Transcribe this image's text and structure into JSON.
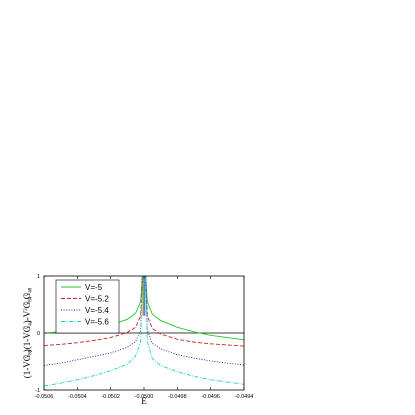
{
  "chart_data": {
    "type": "line",
    "title": "",
    "xlabel": "E",
    "ylabel": "(1-VG^0_88)(1-VG^0_44)-V^2G^0_84G^0_48",
    "xlim": [
      -0.0506,
      -0.0494
    ],
    "ylim": [
      -1.0,
      1.0
    ],
    "x_ticks": [
      "-0.0506",
      "-0.0504",
      "-0.0502",
      "-0.0500",
      "-0.0498",
      "-0.0496",
      "-0.0494"
    ],
    "y_ticks": [
      "1",
      "0",
      "-1"
    ],
    "x_tick_values": [
      -0.0506,
      -0.0504,
      -0.0502,
      -0.05,
      -0.0498,
      -0.0496,
      -0.0494
    ],
    "y_tick_values": [
      1,
      0,
      -1
    ],
    "grid": false,
    "legend_position": "top-left",
    "reference_line": {
      "y": 0,
      "color": "#000000"
    },
    "pole_x": -0.05,
    "series": [
      {
        "name": "V=-5",
        "color": "#22cc22",
        "dash": "solid",
        "x": [
          -0.0506,
          -0.0505,
          -0.0504,
          -0.0503,
          -0.0502,
          -0.0501,
          -0.05005,
          -0.05002,
          -0.05001,
          -0.04999,
          -0.04998,
          -0.04995,
          -0.0499,
          -0.0498,
          -0.0497,
          -0.0496,
          -0.0495,
          -0.0494
        ],
        "y": [
          0.0,
          0.02,
          0.05,
          0.09,
          0.14,
          0.24,
          0.35,
          0.55,
          1.0,
          1.0,
          0.55,
          0.33,
          0.22,
          0.1,
          0.02,
          -0.04,
          -0.08,
          -0.12
        ]
      },
      {
        "name": "V=-5.2",
        "color": "#cc2222",
        "dash": "dashed",
        "x": [
          -0.0506,
          -0.0505,
          -0.0504,
          -0.0503,
          -0.0502,
          -0.0501,
          -0.05005,
          -0.05002,
          -0.05001,
          -0.04999,
          -0.04998,
          -0.04995,
          -0.0499,
          -0.0498,
          -0.0497,
          -0.0496,
          -0.0495,
          -0.0494
        ],
        "y": [
          -0.22,
          -0.2,
          -0.17,
          -0.13,
          -0.08,
          0.01,
          0.1,
          0.3,
          1.0,
          1.0,
          0.3,
          0.08,
          -0.02,
          -0.11,
          -0.16,
          -0.19,
          -0.21,
          -0.23
        ]
      },
      {
        "name": "V=-5.4",
        "color": "#2222aa",
        "dash": "dotted",
        "x": [
          -0.0506,
          -0.0505,
          -0.0504,
          -0.0503,
          -0.0502,
          -0.0501,
          -0.05005,
          -0.05002,
          -0.05001,
          -0.04999,
          -0.04998,
          -0.04995,
          -0.0499,
          -0.0498,
          -0.0497,
          -0.0496,
          -0.0495,
          -0.0494
        ],
        "y": [
          -0.57,
          -0.53,
          -0.47,
          -0.41,
          -0.35,
          -0.25,
          -0.15,
          0.05,
          1.0,
          1.0,
          0.05,
          -0.18,
          -0.28,
          -0.38,
          -0.44,
          -0.49,
          -0.53,
          -0.56
        ]
      },
      {
        "name": "V=-5.6",
        "color": "#22cccc",
        "dash": "dashdot",
        "x": [
          -0.0506,
          -0.0505,
          -0.0504,
          -0.0503,
          -0.0502,
          -0.0501,
          -0.05005,
          -0.05002,
          -0.05001,
          -0.04999,
          -0.04998,
          -0.04995,
          -0.0499,
          -0.0498,
          -0.0497,
          -0.0496,
          -0.0495,
          -0.0494
        ],
        "y": [
          -0.93,
          -0.88,
          -0.82,
          -0.75,
          -0.66,
          -0.55,
          -0.4,
          -0.15,
          1.0,
          1.0,
          -0.15,
          -0.45,
          -0.57,
          -0.68,
          -0.76,
          -0.82,
          -0.86,
          -0.9
        ]
      }
    ]
  }
}
